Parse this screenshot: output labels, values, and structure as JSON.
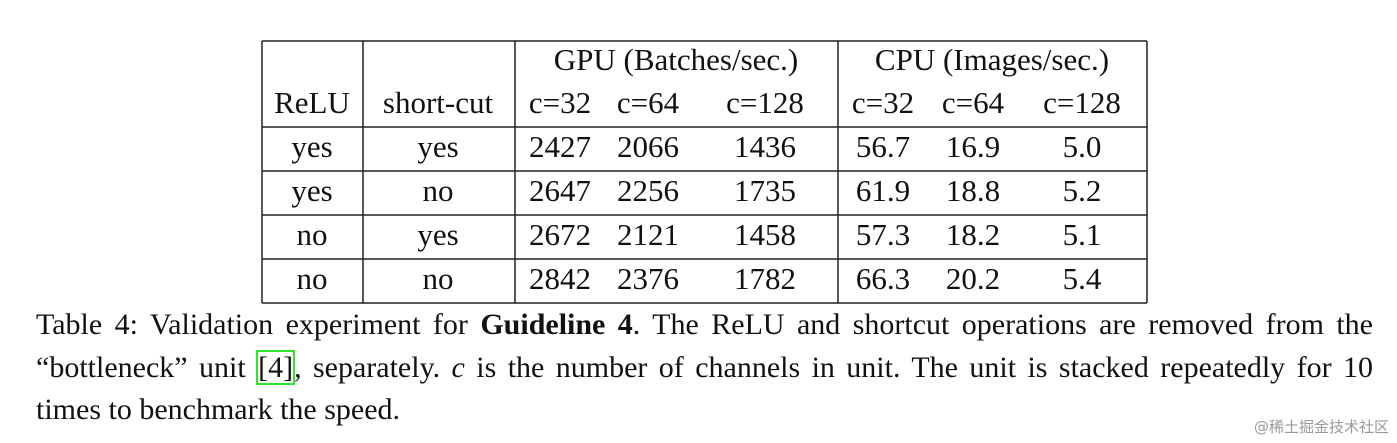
{
  "table": {
    "groups": [
      "GPU (Batches/sec.)",
      "CPU (Images/sec.)"
    ],
    "columns": [
      "ReLU",
      "short-cut",
      "c=32",
      "c=64",
      "c=128",
      "c=32",
      "c=64",
      "c=128"
    ],
    "rows": [
      [
        "yes",
        "yes",
        "2427",
        "2066",
        "1436",
        "56.7",
        "16.9",
        "5.0"
      ],
      [
        "yes",
        "no",
        "2647",
        "2256",
        "1735",
        "61.9",
        "18.8",
        "5.2"
      ],
      [
        "no",
        "yes",
        "2672",
        "2121",
        "1458",
        "57.3",
        "18.2",
        "5.1"
      ],
      [
        "no",
        "no",
        "2842",
        "2376",
        "1782",
        "66.3",
        "20.2",
        "5.4"
      ]
    ]
  },
  "caption": {
    "text_1": "Table 4: Validation experiment for ",
    "bold": "Guideline 4",
    "text_2": ". The ReLU and shortcut operations are removed from the “bottleneck” unit ",
    "ref": "[4]",
    "text_3": ", separately. ",
    "italic": "c",
    "text_4": " is the number of channels in unit. The unit is stacked repeatedly for 10 times to benchmark the speed."
  },
  "watermark": "@稀土掘金技术社区"
}
